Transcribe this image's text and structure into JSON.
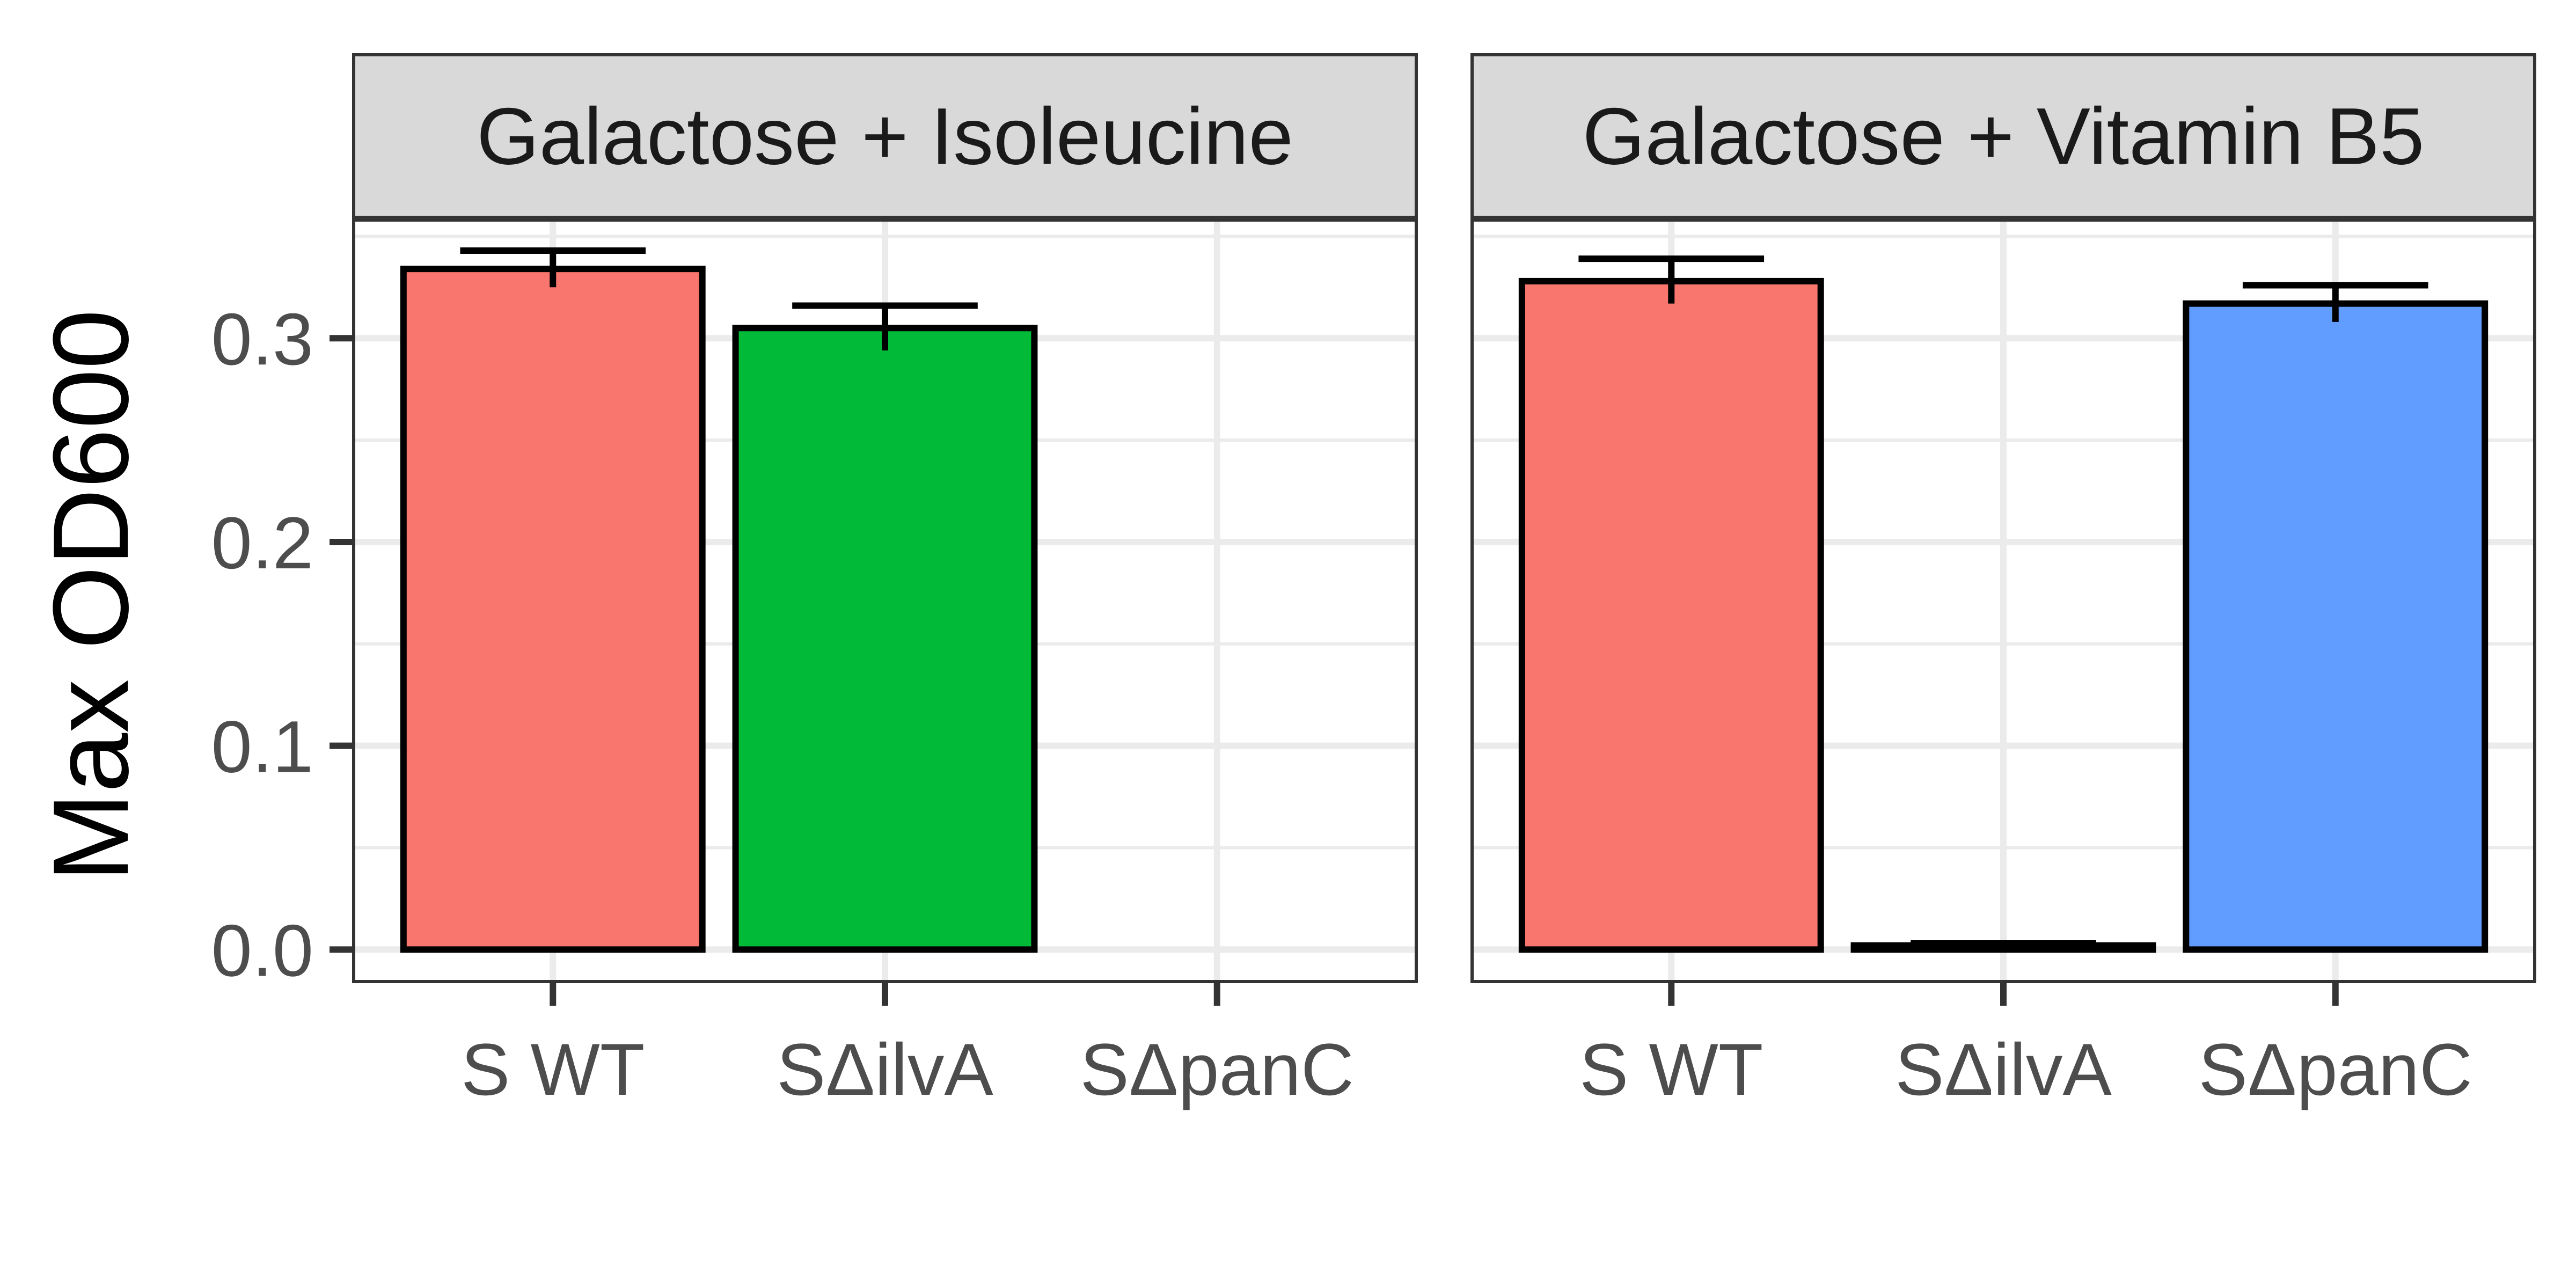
{
  "chart_data": {
    "type": "bar",
    "ylabel": "Max OD600",
    "ylim": [
      -0.0157,
      0.358
    ],
    "yticks": [
      0.0,
      0.1,
      0.2,
      0.3
    ],
    "ytick_labels": [
      "0.0",
      "0.1",
      "0.2",
      "0.3"
    ],
    "categories": [
      "S WT",
      "SΔilvA",
      "SΔpanC"
    ],
    "grid": true,
    "legend": "none",
    "colors": {
      "S WT": "#F8766D",
      "SΔilvA": "#00BA38",
      "SΔpanC": "#619CFF",
      "strip_fill": "#D9D9D9",
      "panel_border": "#333333",
      "grid": "#EBEBEB"
    },
    "panels": [
      {
        "title": "Galactose + Isoleucine",
        "values": [
          0.334,
          0.305,
          0.0
        ],
        "errors": [
          0.009,
          0.011,
          0.0
        ]
      },
      {
        "title": "Galactose + Vitamin B5",
        "values": [
          0.328,
          0.002,
          0.317
        ],
        "errors": [
          0.011,
          0.001,
          0.009
        ]
      }
    ]
  }
}
